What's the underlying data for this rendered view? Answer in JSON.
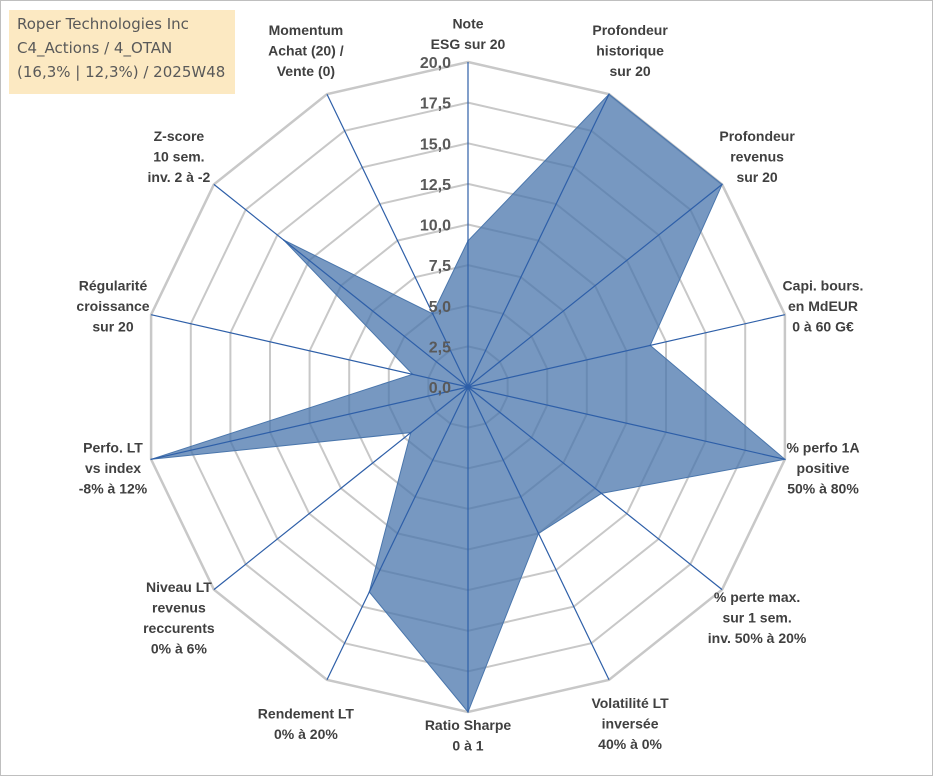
{
  "header": {
    "line1": "Roper Technologies Inc",
    "line2": "C4_Actions / 4_OTAN",
    "line3": "(16,3% | 12,3%) / 2025W48"
  },
  "colors": {
    "fill": "#4a76ac",
    "axis": "#2e5fa8",
    "grid": "#c8c8c8"
  },
  "chart_data": {
    "type": "radar",
    "rlim": [
      0,
      20
    ],
    "grid": true,
    "tick_labels": [
      "0,0",
      "2,5",
      "5,0",
      "7,5",
      "10,0",
      "12,5",
      "15,0",
      "17,5",
      "20,0"
    ],
    "axes": [
      [
        "Note",
        "ESG sur 20"
      ],
      [
        "Profondeur",
        "historique",
        "sur 20"
      ],
      [
        "Profondeur",
        "revenus",
        "sur 20"
      ],
      [
        "Capi. bours.",
        "en MdEUR",
        "0 à 60 G€"
      ],
      [
        "% perfo 1A",
        "positive",
        "50% à 80%"
      ],
      [
        "% perte max.",
        "sur 1 sem.",
        "inv. 50% à 20%"
      ],
      [
        "Volatilité LT",
        "inversée",
        "40% à 0%"
      ],
      [
        "Ratio Sharpe",
        "0 à 1"
      ],
      [
        "Rendement LT",
        "0% à 20%"
      ],
      [
        "Niveau LT",
        "revenus",
        "reccurents",
        "0% à 6%"
      ],
      [
        "Perfo. LT",
        "vs index",
        "-8% à 12%"
      ],
      [
        "Régularité",
        "croissance",
        "sur 20"
      ],
      [
        "Z-score",
        "10 sem.",
        "inv. 2 à -2"
      ],
      [
        "Momentum",
        "Achat (20) /",
        "Vente (0)"
      ]
    ],
    "series": [
      {
        "values": [
          9.0,
          20.0,
          20.0,
          11.5,
          20.0,
          10.5,
          10.0,
          20.0,
          14.0,
          4.5,
          20.0,
          3.5,
          14.5,
          5.0
        ]
      }
    ]
  }
}
